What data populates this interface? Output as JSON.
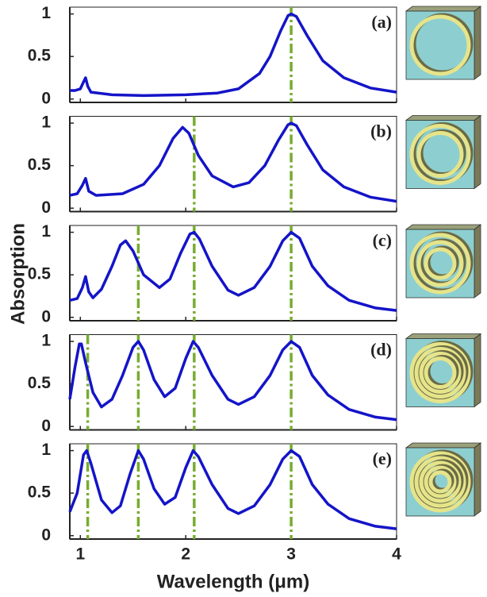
{
  "ylabel": "Absorption",
  "xlabel": "Wavelength (μm)",
  "chart_data": [
    {
      "type": "line",
      "panel_label": "(a)",
      "xlim": [
        0.9,
        4
      ],
      "xticks": [
        1,
        2,
        3,
        4
      ],
      "xtick_labels": false,
      "ylim": [
        -0.04,
        1.08
      ],
      "yticks": [
        0,
        0.5,
        1
      ],
      "vline_color": "#77ac30",
      "vlines": [
        3.0
      ],
      "series": [
        {
          "color": "#1414c8",
          "x": [
            0.9,
            0.95,
            1.0,
            1.03,
            1.05,
            1.07,
            1.1,
            1.3,
            1.6,
            2.0,
            2.3,
            2.5,
            2.7,
            2.8,
            2.9,
            2.97,
            3.0,
            3.05,
            3.15,
            3.3,
            3.5,
            3.75,
            4.0
          ],
          "values": [
            0.1,
            0.1,
            0.12,
            0.2,
            0.25,
            0.15,
            0.08,
            0.05,
            0.04,
            0.05,
            0.07,
            0.12,
            0.3,
            0.5,
            0.8,
            0.98,
            1.0,
            0.97,
            0.75,
            0.45,
            0.25,
            0.13,
            0.08
          ]
        }
      ]
    },
    {
      "type": "line",
      "panel_label": "(b)",
      "xlim": [
        0.9,
        4
      ],
      "xticks": [
        1,
        2,
        3,
        4
      ],
      "xtick_labels": false,
      "ylim": [
        -0.04,
        1.08
      ],
      "yticks": [
        0,
        0.5,
        1
      ],
      "vline_color": "#77ac30",
      "vlines": [
        2.08,
        3.0
      ],
      "series": [
        {
          "color": "#1414c8",
          "x": [
            0.9,
            0.97,
            1.02,
            1.05,
            1.08,
            1.15,
            1.4,
            1.6,
            1.75,
            1.88,
            1.97,
            2.03,
            2.12,
            2.25,
            2.45,
            2.6,
            2.75,
            2.88,
            2.97,
            3.0,
            3.05,
            3.15,
            3.3,
            3.5,
            3.75,
            4.0
          ],
          "values": [
            0.15,
            0.17,
            0.27,
            0.35,
            0.2,
            0.15,
            0.17,
            0.28,
            0.5,
            0.82,
            0.95,
            0.88,
            0.62,
            0.38,
            0.25,
            0.3,
            0.5,
            0.8,
            0.98,
            1.0,
            0.97,
            0.75,
            0.45,
            0.25,
            0.13,
            0.08
          ]
        }
      ]
    },
    {
      "type": "line",
      "panel_label": "(c)",
      "xlim": [
        0.9,
        4
      ],
      "xticks": [
        1,
        2,
        3,
        4
      ],
      "xtick_labels": false,
      "ylim": [
        -0.04,
        1.08
      ],
      "yticks": [
        0,
        0.5,
        1
      ],
      "vline_color": "#77ac30",
      "vlines": [
        1.55,
        2.08,
        3.0
      ],
      "series": [
        {
          "color": "#1414c8",
          "x": [
            0.9,
            0.97,
            1.02,
            1.05,
            1.08,
            1.12,
            1.2,
            1.3,
            1.38,
            1.43,
            1.5,
            1.6,
            1.75,
            1.85,
            1.95,
            2.04,
            2.08,
            2.13,
            2.25,
            2.4,
            2.5,
            2.65,
            2.8,
            2.92,
            3.0,
            3.08,
            3.2,
            3.35,
            3.55,
            3.8,
            4.0
          ],
          "values": [
            0.2,
            0.22,
            0.35,
            0.48,
            0.3,
            0.23,
            0.33,
            0.6,
            0.85,
            0.9,
            0.78,
            0.5,
            0.35,
            0.45,
            0.75,
            0.98,
            1.0,
            0.92,
            0.6,
            0.32,
            0.26,
            0.35,
            0.6,
            0.9,
            1.0,
            0.93,
            0.6,
            0.37,
            0.2,
            0.11,
            0.08
          ]
        }
      ]
    },
    {
      "type": "line",
      "panel_label": "(d)",
      "xlim": [
        0.9,
        4
      ],
      "xticks": [
        1,
        2,
        3,
        4
      ],
      "xtick_labels": false,
      "ylim": [
        -0.04,
        1.08
      ],
      "yticks": [
        0,
        0.5,
        1
      ],
      "vline_color": "#77ac30",
      "vlines": [
        1.07,
        1.55,
        2.08,
        3.0
      ],
      "series": [
        {
          "color": "#1414c8",
          "x": [
            0.9,
            0.95,
            0.99,
            1.01,
            1.05,
            1.12,
            1.2,
            1.3,
            1.4,
            1.5,
            1.55,
            1.6,
            1.7,
            1.8,
            1.9,
            2.0,
            2.07,
            2.12,
            2.25,
            2.4,
            2.5,
            2.65,
            2.8,
            2.92,
            3.0,
            3.08,
            3.2,
            3.35,
            3.55,
            3.8,
            4.0
          ],
          "values": [
            0.32,
            0.7,
            0.97,
            0.97,
            0.75,
            0.4,
            0.23,
            0.32,
            0.6,
            0.93,
            1.0,
            0.9,
            0.55,
            0.35,
            0.45,
            0.8,
            1.0,
            0.93,
            0.6,
            0.32,
            0.26,
            0.35,
            0.6,
            0.9,
            1.0,
            0.93,
            0.6,
            0.37,
            0.2,
            0.11,
            0.08
          ]
        }
      ]
    },
    {
      "type": "line",
      "panel_label": "(e)",
      "xlim": [
        0.9,
        4
      ],
      "xticks": [
        1,
        2,
        3,
        4
      ],
      "xtick_labels": true,
      "ylim": [
        -0.04,
        1.08
      ],
      "yticks": [
        0,
        0.5,
        1
      ],
      "vline_color": "#77ac30",
      "vlines": [
        1.07,
        1.55,
        2.08,
        3.0
      ],
      "series": [
        {
          "color": "#1414c8",
          "x": [
            0.9,
            0.97,
            1.03,
            1.06,
            1.1,
            1.2,
            1.3,
            1.38,
            1.47,
            1.55,
            1.6,
            1.7,
            1.8,
            1.9,
            2.0,
            2.07,
            2.12,
            2.25,
            2.4,
            2.5,
            2.65,
            2.8,
            2.92,
            3.0,
            3.08,
            3.2,
            3.35,
            3.55,
            3.8,
            4.0
          ],
          "values": [
            0.28,
            0.5,
            0.95,
            1.0,
            0.85,
            0.42,
            0.27,
            0.35,
            0.72,
            1.0,
            0.9,
            0.55,
            0.37,
            0.45,
            0.8,
            1.0,
            0.93,
            0.6,
            0.32,
            0.26,
            0.35,
            0.6,
            0.9,
            1.0,
            0.93,
            0.6,
            0.37,
            0.2,
            0.11,
            0.08
          ]
        }
      ]
    }
  ]
}
